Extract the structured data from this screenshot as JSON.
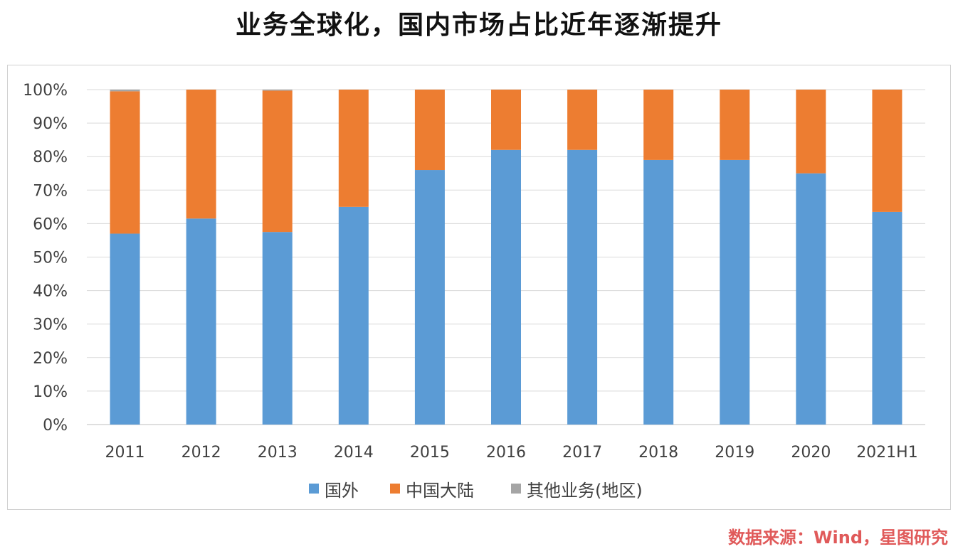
{
  "chart_data": {
    "type": "bar",
    "stacked": true,
    "title": "业务全球化，国内市场占比近年逐渐提升",
    "categories": [
      "2011",
      "2012",
      "2013",
      "2014",
      "2015",
      "2016",
      "2017",
      "2018",
      "2019",
      "2020",
      "2021H1"
    ],
    "series": [
      {
        "name": "国外",
        "color": "#5b9bd5",
        "values": [
          57,
          61.5,
          57.5,
          65,
          76,
          82,
          82,
          79,
          79,
          75,
          63.5
        ]
      },
      {
        "name": "中国大陆",
        "color": "#ed7d31",
        "values": [
          42.5,
          38.5,
          42.2,
          35,
          24,
          18,
          18,
          21,
          21,
          25,
          36.5
        ]
      },
      {
        "name": "其他业务(地区)",
        "color": "#a5a5a5",
        "values": [
          0.5,
          0,
          0.3,
          0,
          0,
          0,
          0,
          0,
          0,
          0,
          0
        ]
      }
    ],
    "ylim": [
      0,
      100
    ],
    "yticks": [
      "0%",
      "10%",
      "20%",
      "30%",
      "40%",
      "50%",
      "60%",
      "70%",
      "80%",
      "90%",
      "100%"
    ],
    "grid": true,
    "legend": "bottom"
  },
  "source": "数据来源：Wind，星图研究"
}
